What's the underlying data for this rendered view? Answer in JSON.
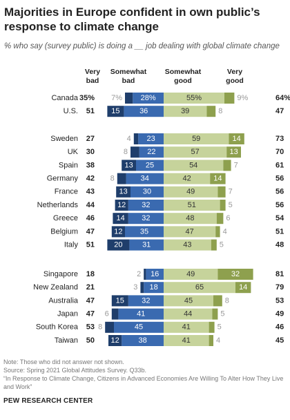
{
  "title": "Majorities in Europe confident in own public’s response to climate change",
  "subtitle": "% who say (survey public) is doing a __ job dealing with global climate change",
  "notes": {
    "note": "Note: Those who did not answer not shown.",
    "source": "Source: Spring 2021 Global Attitudes Survey. Q33b.",
    "report": "“In Response to Climate Change, Citizens in Advanced Economies Are Willing To Alter How They Live and Work”"
  },
  "source_org": "PEW RESEARCH CENTER",
  "colors": {
    "very_bad": "#1f3e6b",
    "somewhat_bad": "#3a6ab0",
    "somewhat_good": "#c6d39b",
    "very_good": "#8ea04e"
  },
  "chart_data": {
    "type": "bar",
    "orientation": "horizontal-diverging",
    "legend": [
      "Very bad",
      "Somewhat bad",
      "Somewhat good",
      "Very good"
    ],
    "legend_display": [
      [
        "Very",
        "bad"
      ],
      [
        "Somewhat",
        "bad"
      ],
      [
        "Somewhat",
        "good"
      ],
      [
        "Very",
        "good"
      ]
    ],
    "groups": [
      {
        "rows": [
          {
            "country": "Canada",
            "very_bad": 7,
            "somewhat_bad": 28,
            "somewhat_good": 55,
            "very_good": 9,
            "total_bad": "35%",
            "total_good": "64%",
            "pct": true
          },
          {
            "country": "U.S.",
            "very_bad": 15,
            "somewhat_bad": 36,
            "somewhat_good": 39,
            "very_good": 8,
            "total_bad": "51",
            "total_good": "47"
          }
        ]
      },
      {
        "rows": [
          {
            "country": "Sweden",
            "very_bad": 4,
            "somewhat_bad": 23,
            "somewhat_good": 59,
            "very_good": 14,
            "total_bad": "27",
            "total_good": "73"
          },
          {
            "country": "UK",
            "very_bad": 8,
            "somewhat_bad": 22,
            "somewhat_good": 57,
            "very_good": 13,
            "total_bad": "30",
            "total_good": "70"
          },
          {
            "country": "Spain",
            "very_bad": 13,
            "somewhat_bad": 25,
            "somewhat_good": 54,
            "very_good": 7,
            "total_bad": "38",
            "total_good": "61"
          },
          {
            "country": "Germany",
            "very_bad": 8,
            "somewhat_bad": 34,
            "somewhat_good": 42,
            "very_good": 14,
            "total_bad": "42",
            "total_good": "56"
          },
          {
            "country": "France",
            "very_bad": 13,
            "somewhat_bad": 30,
            "somewhat_good": 49,
            "very_good": 7,
            "total_bad": "43",
            "total_good": "56"
          },
          {
            "country": "Netherlands",
            "very_bad": 12,
            "somewhat_bad": 32,
            "somewhat_good": 51,
            "very_good": 5,
            "total_bad": "44",
            "total_good": "56"
          },
          {
            "country": "Greece",
            "very_bad": 14,
            "somewhat_bad": 32,
            "somewhat_good": 48,
            "very_good": 6,
            "total_bad": "46",
            "total_good": "54"
          },
          {
            "country": "Belgium",
            "very_bad": 12,
            "somewhat_bad": 35,
            "somewhat_good": 47,
            "very_good": 4,
            "total_bad": "47",
            "total_good": "51"
          },
          {
            "country": "Italy",
            "very_bad": 20,
            "somewhat_bad": 31,
            "somewhat_good": 43,
            "very_good": 5,
            "total_bad": "51",
            "total_good": "48"
          }
        ]
      },
      {
        "rows": [
          {
            "country": "Singapore",
            "very_bad": 2,
            "somewhat_bad": 16,
            "somewhat_good": 49,
            "very_good": 32,
            "total_bad": "18",
            "total_good": "81"
          },
          {
            "country": "New Zealand",
            "very_bad": 3,
            "somewhat_bad": 18,
            "somewhat_good": 65,
            "very_good": 14,
            "total_bad": "21",
            "total_good": "79"
          },
          {
            "country": "Australia",
            "very_bad": 15,
            "somewhat_bad": 32,
            "somewhat_good": 45,
            "very_good": 8,
            "total_bad": "47",
            "total_good": "53"
          },
          {
            "country": "Japan",
            "very_bad": 6,
            "somewhat_bad": 41,
            "somewhat_good": 44,
            "very_good": 5,
            "total_bad": "47",
            "total_good": "49"
          },
          {
            "country": "South Korea",
            "very_bad": 8,
            "somewhat_bad": 45,
            "somewhat_good": 41,
            "very_good": 5,
            "total_bad": "53",
            "total_good": "46"
          },
          {
            "country": "Taiwan",
            "very_bad": 12,
            "somewhat_bad": 38,
            "somewhat_good": 41,
            "very_good": 4,
            "total_bad": "50",
            "total_good": "45"
          }
        ]
      }
    ]
  }
}
